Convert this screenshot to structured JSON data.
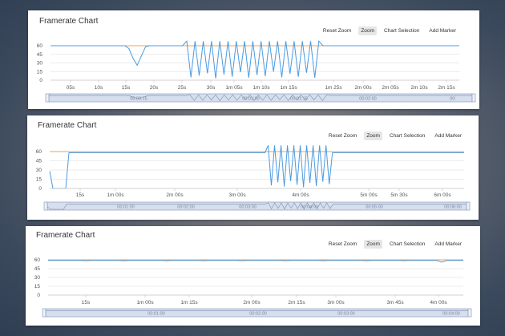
{
  "toolbar": {
    "reset_zoom": "Reset Zoom",
    "zoom": "Zoom",
    "chart_selection": "Chart Selection",
    "add_marker": "Add Marker"
  },
  "colors": {
    "series": "#4b9be0",
    "target": "#f0a050",
    "grid": "#e4e4e4",
    "navigator_bg": "#d6dfee",
    "navigator_border": "#8ea0bd"
  },
  "charts": [
    {
      "title": "Framerate Chart",
      "chart_data": {
        "type": "line",
        "title": "Framerate Chart",
        "y_ticks": [
          "0",
          "15",
          "30",
          "45",
          "60"
        ],
        "ylim": [
          0,
          60
        ],
        "x_ticks": [
          "05s",
          "10s",
          "15s",
          "20s",
          "25s",
          "30s",
          "1m 05s",
          "1m 10s",
          "1m 15s",
          "1m 25s",
          "2m 00s",
          "2m 05s",
          "2m 10s",
          "2m 15s"
        ],
        "navigator_labels": [
          "00:00:15",
          "00:01:00",
          "00:01:15",
          "00:02:00",
          "00:"
        ],
        "series": [
          {
            "values": [
              60,
              60,
              60,
              60,
              60,
              60,
              60,
              60,
              60,
              60,
              60,
              60,
              60,
              60,
              60,
              60,
              60,
              60,
              60,
              55,
              38,
              26,
              42,
              58,
              60,
              60,
              60,
              60,
              60,
              60,
              60,
              60,
              60,
              68,
              5,
              68,
              8,
              68,
              12,
              68,
              3,
              68,
              10,
              68,
              6,
              68,
              14,
              68,
              4,
              68,
              9,
              68,
              7,
              68,
              15,
              68,
              5,
              68,
              11,
              68,
              6,
              68,
              13,
              68,
              4,
              68,
              60,
              60,
              60,
              60,
              60,
              60,
              60,
              60,
              60,
              60,
              60,
              60,
              60,
              60,
              60,
              60,
              60,
              60,
              60,
              60,
              60,
              60,
              60,
              60,
              60,
              60,
              60,
              60,
              60,
              60,
              60,
              60,
              60,
              60
            ]
          }
        ]
      }
    },
    {
      "title": "Framerate Chart",
      "chart_data": {
        "type": "line",
        "title": "Framerate Chart",
        "y_ticks": [
          "0",
          "15",
          "30",
          "45",
          "60"
        ],
        "ylim": [
          0,
          60
        ],
        "x_ticks": [
          "15s",
          "1m 00s",
          "2m 00s",
          "3m 00s",
          "4m 00s",
          "5m 00s",
          "5m 30s",
          "6m 00s"
        ],
        "navigator_labels": [
          "00:01:00",
          "00:02:00",
          "00:03:00",
          "00:04:00",
          "00:05:00",
          "00:06:00"
        ],
        "series": [
          {
            "values": [
              28,
              0,
              0,
              0,
              0,
              0,
              58,
              58,
              58,
              58,
              58,
              58,
              58,
              58,
              58,
              58,
              58,
              58,
              58,
              58,
              58,
              58,
              58,
              58,
              58,
              58,
              58,
              58,
              58,
              58,
              58,
              58,
              58,
              58,
              58,
              58,
              58,
              58,
              58,
              58,
              58,
              58,
              58,
              58,
              58,
              58,
              58,
              58,
              58,
              58,
              58,
              58,
              58,
              58,
              58,
              58,
              58,
              58,
              58,
              58,
              58,
              58,
              58,
              58,
              58,
              58,
              58,
              58,
              70,
              5,
              70,
              10,
              70,
              3,
              70,
              12,
              70,
              6,
              70,
              2,
              70,
              9,
              70,
              4,
              70,
              11,
              70,
              7,
              58,
              58,
              58,
              58,
              58,
              58,
              58,
              58,
              58,
              58,
              58,
              58,
              58,
              58,
              58,
              58,
              58,
              58,
              58,
              58,
              58,
              58,
              58,
              58,
              58,
              58,
              58,
              58,
              58,
              58,
              58,
              58,
              58,
              58,
              58,
              58,
              58,
              58,
              58,
              58,
              58,
              58
            ]
          }
        ]
      }
    },
    {
      "title": "Framerate Chart",
      "chart_data": {
        "type": "line",
        "title": "Framerate Chart",
        "y_ticks": [
          "0",
          "15",
          "30",
          "45",
          "60"
        ],
        "ylim": [
          0,
          60
        ],
        "x_ticks": [
          "15s",
          "1m 00s",
          "1m 15s",
          "2m 00s",
          "2m 15s",
          "3m 00s",
          "3m 45s",
          "4m 00s"
        ],
        "navigator_labels": [
          "00:01:00",
          "00:02:00",
          "00:03:00",
          "00:04:00"
        ],
        "series": [
          {
            "values": [
              59,
              59,
              59,
              59,
              59,
              59,
              59,
              58.5,
              59,
              59,
              59,
              59,
              59,
              59,
              58.5,
              59,
              59,
              59,
              59,
              59,
              59,
              59,
              58.5,
              59,
              59,
              59,
              59,
              59,
              59,
              58.5,
              59,
              59,
              59,
              59,
              59,
              59,
              58.5,
              59,
              59,
              59,
              59,
              59,
              59,
              59,
              58.5,
              59,
              59,
              59,
              59,
              59,
              59,
              58.5,
              59,
              59,
              59,
              59,
              59,
              59,
              59,
              58.5,
              59,
              59,
              59,
              59,
              59,
              59,
              58.5,
              59,
              59,
              59,
              59,
              59,
              59,
              56,
              59,
              59,
              59,
              59
            ]
          }
        ]
      }
    }
  ]
}
